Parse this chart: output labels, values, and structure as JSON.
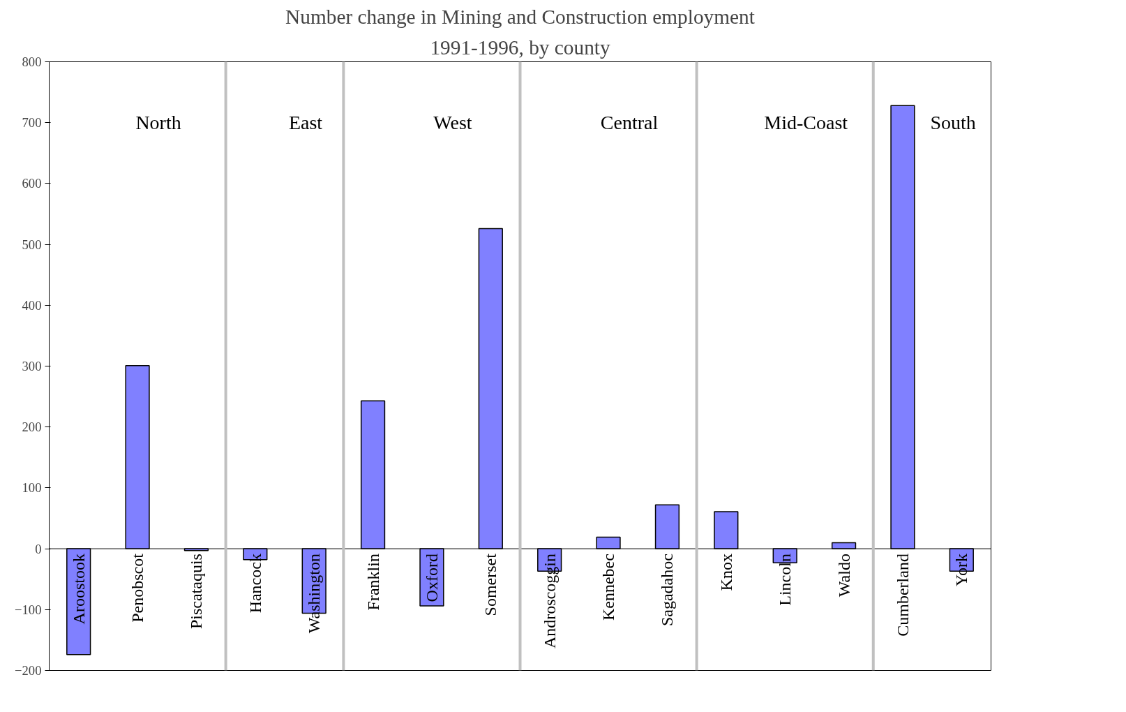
{
  "chart_data": {
    "type": "bar",
    "title": "Number change in Mining and Construction employment",
    "subtitle": "1991-1996, by county",
    "categories": [
      "Aroostook",
      "Penobscot",
      "Piscataquis",
      "Hancock",
      "Washington",
      "Franklin",
      "Oxford",
      "Somerset",
      "Androscoggin",
      "Kennebec",
      "Sagadahoc",
      "Knox",
      "Lincoln",
      "Waldo",
      "Cumberland",
      "York"
    ],
    "values": [
      -174,
      301,
      -3,
      -18,
      -106,
      243,
      -94,
      526,
      -37,
      19,
      72,
      61,
      -23,
      10,
      728,
      -37
    ],
    "color": "#8080ff",
    "ylim": [
      -200,
      800
    ],
    "yticks": [
      -200,
      -100,
      0,
      100,
      200,
      300,
      400,
      500,
      600,
      700,
      800
    ],
    "grid": false,
    "annotations": [
      "North",
      "East",
      "West",
      "Central",
      "Mid-Coast",
      "South"
    ]
  }
}
